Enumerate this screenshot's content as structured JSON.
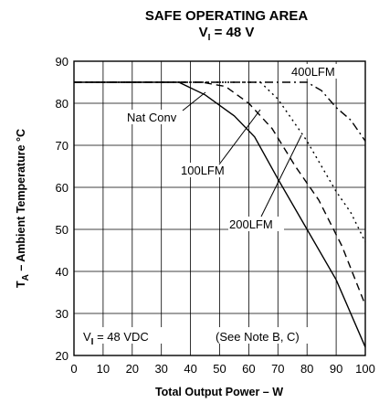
{
  "chart_data": {
    "type": "line",
    "title_main": "SAFE OPERATING AREA",
    "title_sub_prefix": "V",
    "title_sub_subscript": "I",
    "title_sub_suffix": " = 48 V",
    "xlabel": "Total Output Power – W",
    "ylabel_prefix": "T",
    "ylabel_subscript": "A",
    "ylabel_suffix": " – Ambient Temperature °C",
    "xlim": [
      0,
      100
    ],
    "ylim": [
      20,
      90
    ],
    "xticks": [
      "0",
      "10",
      "20",
      "30",
      "40",
      "50",
      "60",
      "70",
      "80",
      "90",
      "100"
    ],
    "yticks": [
      "20",
      "30",
      "40",
      "50",
      "60",
      "70",
      "80",
      "90"
    ],
    "grid": true,
    "series": [
      {
        "name": "Nat Conv",
        "dash": "solid",
        "x": [
          0,
          36,
          45,
          55,
          62,
          70,
          80,
          90,
          100
        ],
        "y": [
          85,
          85,
          82,
          77,
          72,
          62,
          50,
          38,
          22
        ]
      },
      {
        "name": "100LFM",
        "dash": "dashed",
        "x": [
          0,
          44,
          52,
          60,
          68,
          76,
          84,
          92,
          100
        ],
        "y": [
          85,
          85,
          84,
          80,
          74,
          65,
          57,
          46,
          32
        ]
      },
      {
        "name": "200LFM",
        "dash": "dotted",
        "x": [
          0,
          64,
          70,
          75,
          80,
          85,
          90,
          95,
          100
        ],
        "y": [
          85,
          85,
          81,
          76,
          71,
          65,
          59,
          54,
          47
        ]
      },
      {
        "name": "400LFM",
        "dash": "dashdot",
        "x": [
          0,
          80,
          85,
          90,
          95,
          100
        ],
        "y": [
          85,
          85,
          83,
          79,
          76,
          71
        ]
      }
    ],
    "annotations": {
      "vi_prefix": "V",
      "vi_subscript": "I",
      "vi_suffix": " = 48 VDC",
      "note": "(See Note B, C)"
    }
  }
}
